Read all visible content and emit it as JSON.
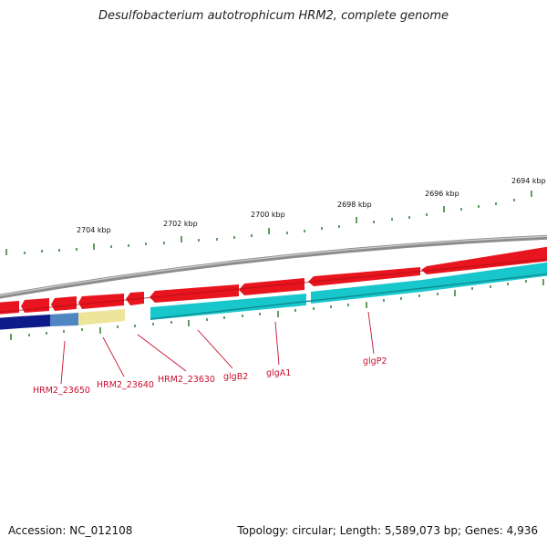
{
  "title": "Desulfobacterium autotrophicum HRM2, complete genome",
  "footer": {
    "accession": "Accession: NC_012108",
    "summary": "Topology: circular; Length: 5,589,073 bp; Genes: 4,936"
  },
  "kbp_labels": [
    "2704 kbp",
    "2702 kbp",
    "2700 kbp",
    "2698 kbp",
    "2696 kbp",
    "2694 kbp"
  ],
  "gene_labels": [
    "HRM2_23650",
    "HRM2_23640",
    "HRM2_23630",
    "glgB2",
    "glgA1",
    "glgP2"
  ],
  "colors": {
    "backbone": "#8c8c8c",
    "forward_gene": "#e8141e",
    "cog_cyan": "#18c7cc",
    "cog_navy": "#0c1a8a",
    "cog_steel": "#4f86c2",
    "cog_khaki": "#ede59a",
    "tick": "#2e7d2e",
    "label": "#c8102e"
  }
}
